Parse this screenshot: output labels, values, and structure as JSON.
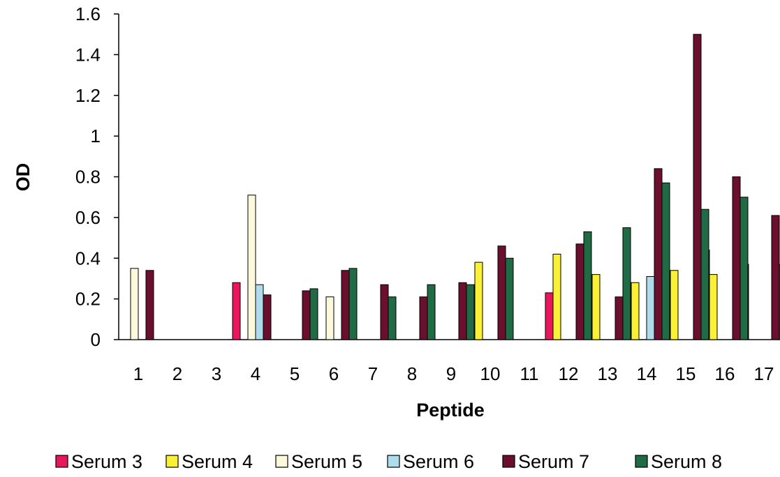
{
  "chart_data": {
    "type": "bar",
    "title": "",
    "xlabel": "Peptide",
    "ylabel": "OD",
    "ylim": [
      0,
      1.6
    ],
    "yticks": [
      "0",
      "0.2",
      "0.4",
      "0.6",
      "0.8",
      "1",
      "1.2",
      "1.4",
      "1.6"
    ],
    "grid": false,
    "legend_position": "bottom",
    "categories": [
      "1",
      "2",
      "3",
      "4",
      "5",
      "6",
      "7",
      "8",
      "9",
      "10",
      "11",
      "12",
      "13",
      "14",
      "15",
      "16",
      "17"
    ],
    "series": [
      {
        "name": "Serum 3",
        "color": "#e8175d",
        "values": [
          0,
          0,
          0,
          0.28,
          0,
          0,
          0,
          0,
          0,
          0,
          0,
          0.23,
          0.3,
          0.28,
          0,
          0.44,
          0.37
        ]
      },
      {
        "name": "Serum 4",
        "color": "#fbf134",
        "values": [
          0,
          0,
          0,
          0,
          0,
          0,
          0,
          0,
          0,
          0.38,
          0,
          0.42,
          0.32,
          0.28,
          0.34,
          0.32,
          0
        ]
      },
      {
        "name": "Serum 5",
        "color": "#fbf8dc",
        "values": [
          0.35,
          0,
          0,
          0.71,
          0,
          0.21,
          0,
          0,
          0,
          0,
          0,
          0,
          0,
          0,
          0,
          0,
          0
        ]
      },
      {
        "name": "Serum 6",
        "color": "#aedcec",
        "values": [
          0,
          0,
          0,
          0.27,
          0,
          0,
          0,
          0,
          0,
          0,
          0,
          0,
          0,
          0.31,
          0,
          0,
          0
        ]
      },
      {
        "name": "Serum 7",
        "color": "#6b0f2e",
        "values": [
          0.34,
          0,
          0,
          0.22,
          0.24,
          0.34,
          0.27,
          0.21,
          0.28,
          0.46,
          0,
          0.47,
          0.21,
          0.84,
          1.5,
          0.8,
          0.61
        ]
      },
      {
        "name": "Serum 8",
        "color": "#1f6b45",
        "values": [
          0,
          0,
          0,
          0,
          0.25,
          0.35,
          0.21,
          0.27,
          0.27,
          0.4,
          0,
          0.53,
          0.55,
          0.77,
          0.64,
          0.7,
          0.37
        ]
      }
    ]
  }
}
